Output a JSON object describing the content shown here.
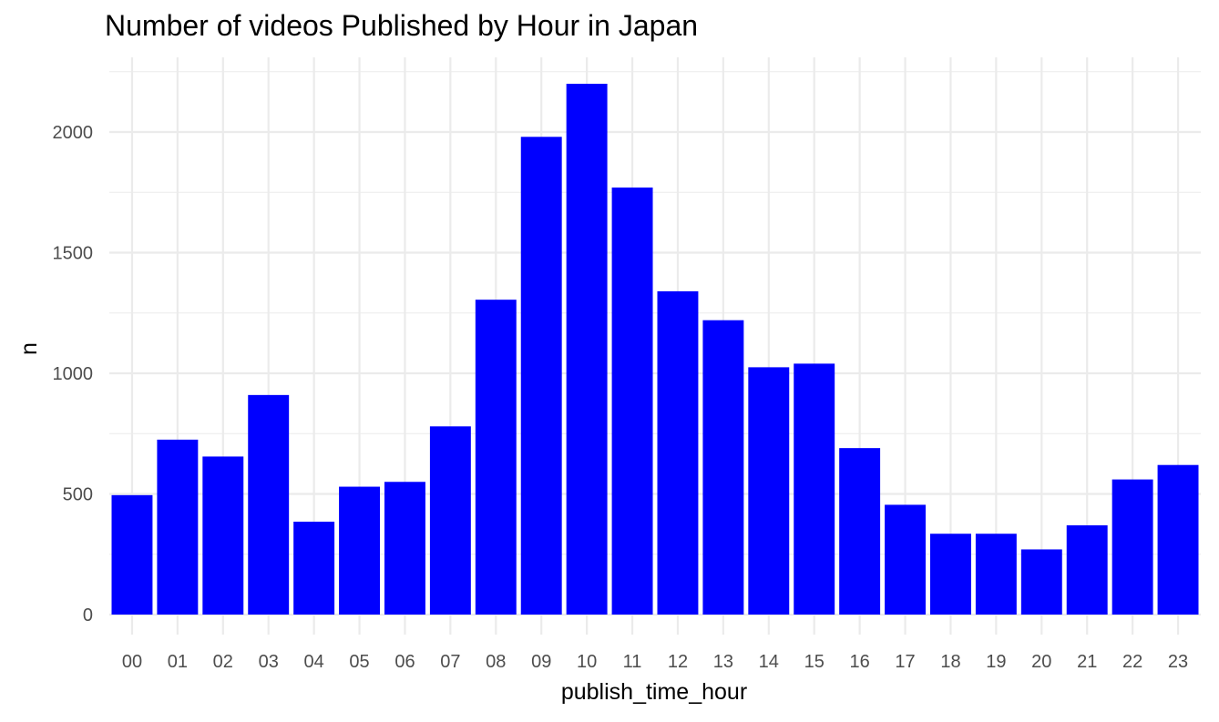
{
  "chart_data": {
    "type": "bar",
    "title": "Number of videos Published by Hour in Japan",
    "xlabel": "publish_time_hour",
    "ylabel": "n",
    "categories": [
      "00",
      "01",
      "02",
      "03",
      "04",
      "05",
      "06",
      "07",
      "08",
      "09",
      "10",
      "11",
      "12",
      "13",
      "14",
      "15",
      "16",
      "17",
      "18",
      "19",
      "20",
      "21",
      "22",
      "23"
    ],
    "values": [
      495,
      725,
      655,
      910,
      385,
      530,
      550,
      780,
      1305,
      1980,
      2200,
      1770,
      1340,
      1220,
      1025,
      1040,
      690,
      455,
      335,
      335,
      270,
      370,
      560,
      620
    ],
    "ylim": [
      0,
      2200
    ],
    "yticks": [
      0,
      500,
      1000,
      1500,
      2000
    ],
    "bar_color": "#0000ff",
    "grid": true,
    "legend": "none"
  }
}
